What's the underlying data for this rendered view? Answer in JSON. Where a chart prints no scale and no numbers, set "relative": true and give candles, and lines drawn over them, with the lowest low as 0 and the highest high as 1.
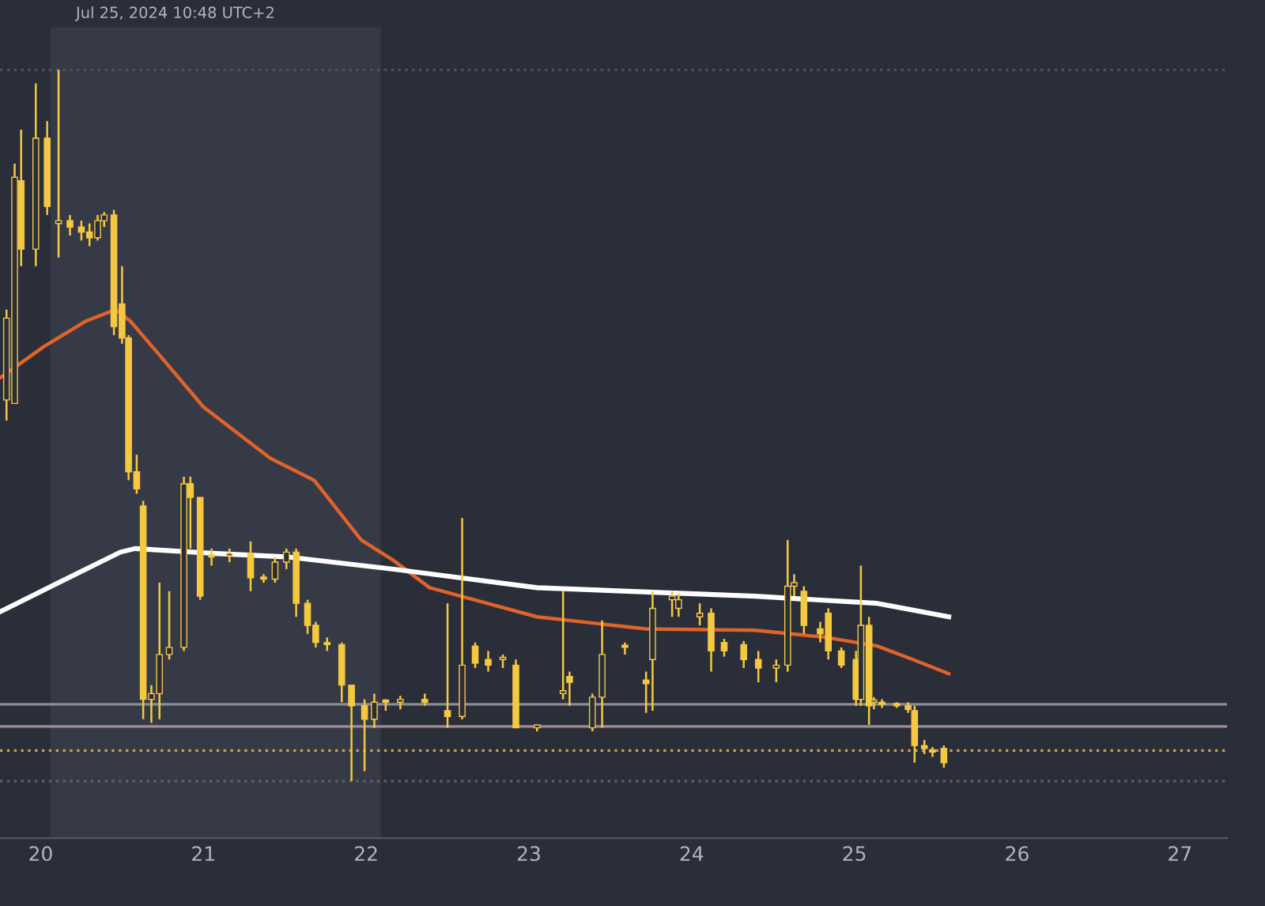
{
  "chart_data": {
    "type": "candlestick",
    "relative": true,
    "color": "#f5c842",
    "x": [
      19.79,
      19.84,
      19.88,
      19.97,
      20.04,
      20.11,
      20.18,
      20.25,
      20.3,
      20.35,
      20.39,
      20.45,
      20.5,
      20.54,
      20.59,
      20.63,
      20.68,
      20.73,
      20.79,
      20.88,
      20.92,
      20.98,
      21.05,
      21.16,
      21.29,
      21.37,
      21.44,
      21.51,
      21.57,
      21.64,
      21.69,
      21.76,
      21.85,
      21.91,
      21.99,
      22.05,
      22.12,
      22.21,
      22.36,
      22.5,
      22.59,
      22.67,
      22.75,
      22.84,
      22.92,
      23.05,
      23.21,
      23.25,
      23.39,
      23.45,
      23.59,
      23.72,
      23.76,
      23.88,
      23.92,
      24.05,
      24.12,
      24.2,
      24.32,
      24.41,
      24.52,
      24.59,
      24.63,
      24.69,
      24.79,
      24.84,
      24.92,
      25.01,
      25.04,
      25.09,
      25.12,
      25.17,
      25.26,
      25.33,
      25.37,
      25.43,
      25.48,
      25.55
    ],
    "ohlc": [
      [
        0.536,
        0.663,
        0.507,
        0.651
      ],
      [
        0.531,
        0.868,
        0.531,
        0.849
      ],
      [
        0.844,
        0.916,
        0.724,
        0.748
      ],
      [
        0.748,
        0.981,
        0.724,
        0.904
      ],
      [
        0.904,
        0.928,
        0.796,
        0.808
      ],
      [
        0.784,
        1.0,
        0.736,
        0.788
      ],
      [
        0.788,
        0.796,
        0.767,
        0.779
      ],
      [
        0.779,
        0.788,
        0.76,
        0.772
      ],
      [
        0.772,
        0.784,
        0.752,
        0.764
      ],
      [
        0.764,
        0.796,
        0.76,
        0.788
      ],
      [
        0.788,
        0.8,
        0.779,
        0.796
      ],
      [
        0.796,
        0.803,
        0.627,
        0.639
      ],
      [
        0.671,
        0.724,
        0.615,
        0.623
      ],
      [
        0.623,
        0.627,
        0.423,
        0.435
      ],
      [
        0.435,
        0.459,
        0.404,
        0.411
      ],
      [
        0.387,
        0.394,
        0.087,
        0.115
      ],
      [
        0.115,
        0.135,
        0.082,
        0.123
      ],
      [
        0.123,
        0.279,
        0.087,
        0.178
      ],
      [
        0.178,
        0.267,
        0.171,
        0.188
      ],
      [
        0.188,
        0.428,
        0.183,
        0.418
      ],
      [
        0.418,
        0.428,
        0.327,
        0.399
      ],
      [
        0.399,
        0.399,
        0.255,
        0.26
      ],
      [
        0.315,
        0.327,
        0.303,
        0.315
      ],
      [
        0.317,
        0.327,
        0.308,
        0.32
      ],
      [
        0.32,
        0.337,
        0.267,
        0.286
      ],
      [
        0.286,
        0.291,
        0.279,
        0.284
      ],
      [
        0.284,
        0.315,
        0.279,
        0.308
      ],
      [
        0.308,
        0.327,
        0.298,
        0.322
      ],
      [
        0.322,
        0.327,
        0.231,
        0.25
      ],
      [
        0.25,
        0.255,
        0.207,
        0.219
      ],
      [
        0.219,
        0.224,
        0.188,
        0.195
      ],
      [
        0.195,
        0.202,
        0.183,
        0.192
      ],
      [
        0.192,
        0.195,
        0.111,
        0.135
      ],
      [
        0.135,
        0.135,
        0.0,
        0.106
      ],
      [
        0.106,
        0.115,
        0.014,
        0.087
      ],
      [
        0.087,
        0.123,
        0.075,
        0.111
      ],
      [
        0.111,
        0.115,
        0.099,
        0.111
      ],
      [
        0.111,
        0.12,
        0.101,
        0.115
      ],
      [
        0.115,
        0.123,
        0.106,
        0.111
      ],
      [
        0.099,
        0.25,
        0.075,
        0.091
      ],
      [
        0.091,
        0.37,
        0.087,
        0.163
      ],
      [
        0.19,
        0.195,
        0.159,
        0.166
      ],
      [
        0.171,
        0.183,
        0.154,
        0.163
      ],
      [
        0.171,
        0.178,
        0.159,
        0.173
      ],
      [
        0.163,
        0.171,
        0.075,
        0.075
      ],
      [
        0.075,
        0.079,
        0.07,
        0.079
      ],
      [
        0.123,
        0.267,
        0.115,
        0.127
      ],
      [
        0.147,
        0.154,
        0.106,
        0.139
      ],
      [
        0.075,
        0.123,
        0.07,
        0.118
      ],
      [
        0.118,
        0.226,
        0.075,
        0.178
      ],
      [
        0.188,
        0.195,
        0.178,
        0.188
      ],
      [
        0.142,
        0.154,
        0.096,
        0.137
      ],
      [
        0.171,
        0.267,
        0.099,
        0.243
      ],
      [
        0.255,
        0.267,
        0.231,
        0.26
      ],
      [
        0.243,
        0.264,
        0.231,
        0.255
      ],
      [
        0.231,
        0.25,
        0.219,
        0.236
      ],
      [
        0.236,
        0.243,
        0.154,
        0.183
      ],
      [
        0.195,
        0.2,
        0.175,
        0.183
      ],
      [
        0.192,
        0.197,
        0.159,
        0.171
      ],
      [
        0.171,
        0.183,
        0.139,
        0.159
      ],
      [
        0.159,
        0.171,
        0.139,
        0.163
      ],
      [
        0.163,
        0.339,
        0.154,
        0.274
      ],
      [
        0.274,
        0.291,
        0.26,
        0.279
      ],
      [
        0.267,
        0.274,
        0.207,
        0.219
      ],
      [
        0.214,
        0.224,
        0.195,
        0.207
      ],
      [
        0.236,
        0.243,
        0.171,
        0.183
      ],
      [
        0.183,
        0.188,
        0.159,
        0.163
      ],
      [
        0.171,
        0.183,
        0.106,
        0.115
      ],
      [
        0.115,
        0.303,
        0.106,
        0.219
      ],
      [
        0.219,
        0.231,
        0.079,
        0.106
      ],
      [
        0.111,
        0.118,
        0.101,
        0.113
      ],
      [
        0.111,
        0.115,
        0.103,
        0.108
      ],
      [
        0.108,
        0.111,
        0.103,
        0.106
      ],
      [
        0.106,
        0.111,
        0.096,
        0.101
      ],
      [
        0.099,
        0.106,
        0.026,
        0.05
      ],
      [
        0.05,
        0.058,
        0.038,
        0.046
      ],
      [
        0.043,
        0.048,
        0.034,
        0.041
      ],
      [
        0.046,
        0.05,
        0.019,
        0.026
      ]
    ],
    "series": [
      {
        "type": "line",
        "color": "#e0632a",
        "x": [
          19.75,
          20.02,
          20.28,
          20.46,
          20.55,
          20.73,
          21.0,
          21.41,
          21.68,
          21.97,
          22.17,
          22.39,
          23.05,
          23.72,
          24.39,
          24.83,
          25.14,
          25.36,
          25.58
        ],
        "values": [
          0.567,
          0.611,
          0.647,
          0.663,
          0.647,
          0.599,
          0.526,
          0.454,
          0.423,
          0.339,
          0.31,
          0.272,
          0.231,
          0.214,
          0.212,
          0.202,
          0.19,
          0.171,
          0.151
        ]
      },
      {
        "type": "line",
        "color": "#ffffff",
        "x": [
          19.75,
          20.11,
          20.49,
          20.58,
          21.08,
          21.53,
          22.17,
          23.05,
          24.39,
          25.14,
          25.58
        ],
        "values": [
          0.238,
          0.279,
          0.322,
          0.327,
          0.32,
          0.315,
          0.298,
          0.272,
          0.26,
          0.25,
          0.231
        ]
      }
    ],
    "xlim": [
      19.75,
      27.29
    ],
    "xticks": [
      20,
      21,
      22,
      23,
      24,
      25,
      26,
      27
    ],
    "bands": [
      {
        "axis": "x",
        "from": 20.06,
        "to": 22.09,
        "color": "#363a46"
      }
    ],
    "ref_lines": [
      {
        "axis": "y",
        "value": 0.108,
        "color": "#8a8d96",
        "line_style": "solid"
      },
      {
        "axis": "y",
        "value": 0.077,
        "color": "#a58c94",
        "line_style": "solid"
      },
      {
        "axis": "y",
        "value": 0.043,
        "color": "#c9a04a",
        "line_style": "dotted"
      },
      {
        "axis": "y",
        "value": 0.0,
        "color": "#5d616c",
        "line_style": "dotted"
      },
      {
        "axis": "y",
        "value": 1.0,
        "color": "#4d515c",
        "line_style": "dotted"
      }
    ],
    "annotations": [
      "Jul 25, 2024 10:48 UTC+2"
    ]
  }
}
